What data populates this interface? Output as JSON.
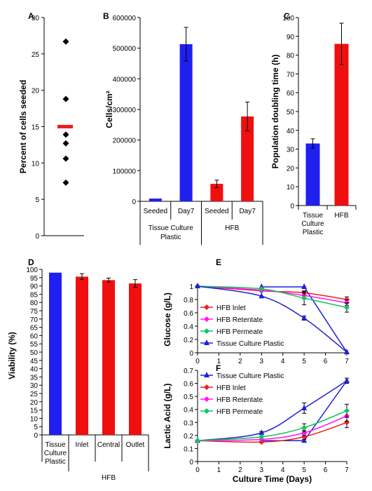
{
  "chart_data": [
    {
      "id": "A",
      "panel_label": "A",
      "type": "scatter",
      "ylabel": "Percent of cells seeded",
      "ylim": [
        0,
        30
      ],
      "yticks": [
        0,
        5,
        10,
        15,
        20,
        25,
        30
      ],
      "values": [
        26.7,
        18.8,
        13.9,
        12.7,
        10.6,
        7.3
      ],
      "mean": 15.0,
      "point_color": "#000000",
      "mean_color": "#e8211c"
    },
    {
      "id": "B",
      "panel_label": "B",
      "type": "bar",
      "ylabel": "Cells/cm²",
      "ylim": [
        0,
        600000
      ],
      "yticks": [
        0,
        100000,
        200000,
        300000,
        400000,
        500000,
        600000
      ],
      "categories": [
        "Seeded",
        "Day7",
        "Seeded",
        "Day7"
      ],
      "groups": [
        "Tissue Culture Plastic",
        "HFB"
      ],
      "values": [
        9000,
        513000,
        57000,
        277000
      ],
      "errors": [
        0,
        55000,
        12000,
        47000
      ],
      "colors": [
        "#1f1ff0",
        "#1f1ff0",
        "#f00f0f",
        "#f00f0f"
      ]
    },
    {
      "id": "C",
      "panel_label": "C",
      "type": "bar",
      "ylabel": "Population doubling time (h)",
      "ylim": [
        0,
        100
      ],
      "yticks": [
        0,
        10,
        20,
        30,
        40,
        50,
        60,
        70,
        80,
        90,
        100
      ],
      "categories": [
        "Tissue Culture Plastic",
        "HFB"
      ],
      "values": [
        33,
        86
      ],
      "errors": [
        2.5,
        11
      ],
      "colors": [
        "#1f1ff0",
        "#f00f0f"
      ]
    },
    {
      "id": "D",
      "panel_label": "D",
      "type": "bar",
      "ylabel": "Viability (%)",
      "ylim": [
        0,
        100
      ],
      "yticks": [
        0,
        5,
        10,
        15,
        20,
        25,
        30,
        35,
        40,
        45,
        50,
        55,
        60,
        65,
        70,
        75,
        80,
        85,
        90,
        95,
        100
      ],
      "categories": [
        "Tissue Culture Plastic",
        "Inlet",
        "Central",
        "Outlet"
      ],
      "groups": [
        "HFB"
      ],
      "values": [
        98,
        95.6,
        93.5,
        91.5
      ],
      "errors": [
        0,
        1.8,
        1.2,
        2.3
      ],
      "colors": [
        "#1f1ff0",
        "#f00f0f",
        "#f00f0f",
        "#f00f0f"
      ]
    },
    {
      "id": "E",
      "panel_label": "E",
      "type": "line",
      "ylabel": "Glucose (g/L)",
      "ylim": [
        0,
        1
      ],
      "xlim": [
        0,
        7
      ],
      "xticks": [
        0,
        1,
        2,
        3,
        4,
        5,
        6,
        7
      ],
      "yticks": [
        0,
        0.2,
        0.4,
        0.6,
        0.8,
        1
      ],
      "legend_position": "bottom-left",
      "series": [
        {
          "name": "HFB Inlet",
          "color": "#e8211c",
          "marker": "diamond",
          "x": [
            0,
            3,
            5,
            7
          ],
          "y": [
            1.0,
            0.93,
            0.9,
            0.8
          ],
          "err": [
            0,
            0,
            0.03,
            0.04
          ]
        },
        {
          "name": "HFB Retentate",
          "color": "#ff14ff",
          "marker": "diamond",
          "x": [
            0,
            3,
            5,
            7
          ],
          "y": [
            1.0,
            0.94,
            0.86,
            0.75
          ],
          "err": [
            0,
            0,
            0.04,
            0.04
          ]
        },
        {
          "name": "HFB Permeate",
          "color": "#16c35a",
          "marker": "diamond",
          "x": [
            0,
            3,
            5,
            7
          ],
          "y": [
            1.0,
            0.96,
            0.82,
            0.68
          ],
          "err": [
            0,
            0,
            0.1,
            0.07
          ]
        },
        {
          "name": "Tissue Culture Plastic",
          "color": "#1f1fd8",
          "marker": "triangle",
          "x": [
            0,
            3,
            5,
            7
          ],
          "y": [
            1.0,
            0.85,
            0.52,
            0.01
          ],
          "err": [
            0,
            0,
            0.03,
            0
          ]
        },
        {
          "name": "",
          "color": "#1f1fd8",
          "marker": "triangle",
          "x": [
            3,
            5
          ],
          "y": [
            0.99,
            0.99
          ],
          "err": [
            0,
            0
          ],
          "smooth": false,
          "connect_to": "Tissue Culture Plastic"
        }
      ]
    },
    {
      "id": "F",
      "panel_label": "F",
      "type": "line",
      "xlabel": "Culture Time (Days)",
      "ylabel": "Lactic Acid (g/L)",
      "ylim": [
        0,
        0.7
      ],
      "xlim": [
        0,
        7
      ],
      "xticks": [
        0,
        1,
        2,
        3,
        4,
        5,
        6,
        7
      ],
      "yticks": [
        0,
        0.1,
        0.2,
        0.3,
        0.4,
        0.5,
        0.6,
        0.7
      ],
      "legend_position": "top-left",
      "series": [
        {
          "name": "Tissue Culture Plastic",
          "color": "#1f1fd8",
          "marker": "triangle",
          "x": [
            0,
            3,
            5,
            7
          ],
          "y": [
            0.16,
            0.22,
            0.41,
            0.62
          ],
          "err": [
            0,
            0.01,
            0.04,
            0.02
          ]
        },
        {
          "name": "HFB Inlet",
          "color": "#e8211c",
          "marker": "diamond",
          "x": [
            0,
            3,
            5,
            7
          ],
          "y": [
            0.16,
            0.15,
            0.19,
            0.3
          ],
          "err": [
            0,
            0,
            0.02,
            0.04
          ]
        },
        {
          "name": "HFB Retentate",
          "color": "#ff14ff",
          "marker": "diamond",
          "x": [
            0,
            3,
            5,
            7
          ],
          "y": [
            0.16,
            0.17,
            0.22,
            0.35
          ],
          "err": [
            0,
            0,
            0.02,
            0.04
          ]
        },
        {
          "name": "HFB Permeate",
          "color": "#16c35a",
          "marker": "diamond",
          "x": [
            0,
            3,
            5,
            7
          ],
          "y": [
            0.16,
            0.19,
            0.26,
            0.39
          ],
          "err": [
            0,
            0,
            0.03,
            0.05
          ]
        },
        {
          "name": "",
          "color": "#1f1fd8",
          "marker": "triangle",
          "x": [
            3,
            5
          ],
          "y": [
            0.16,
            0.16
          ],
          "err": [
            0,
            0
          ],
          "smooth": false,
          "connect_to": "Tissue Culture Plastic"
        }
      ]
    }
  ]
}
